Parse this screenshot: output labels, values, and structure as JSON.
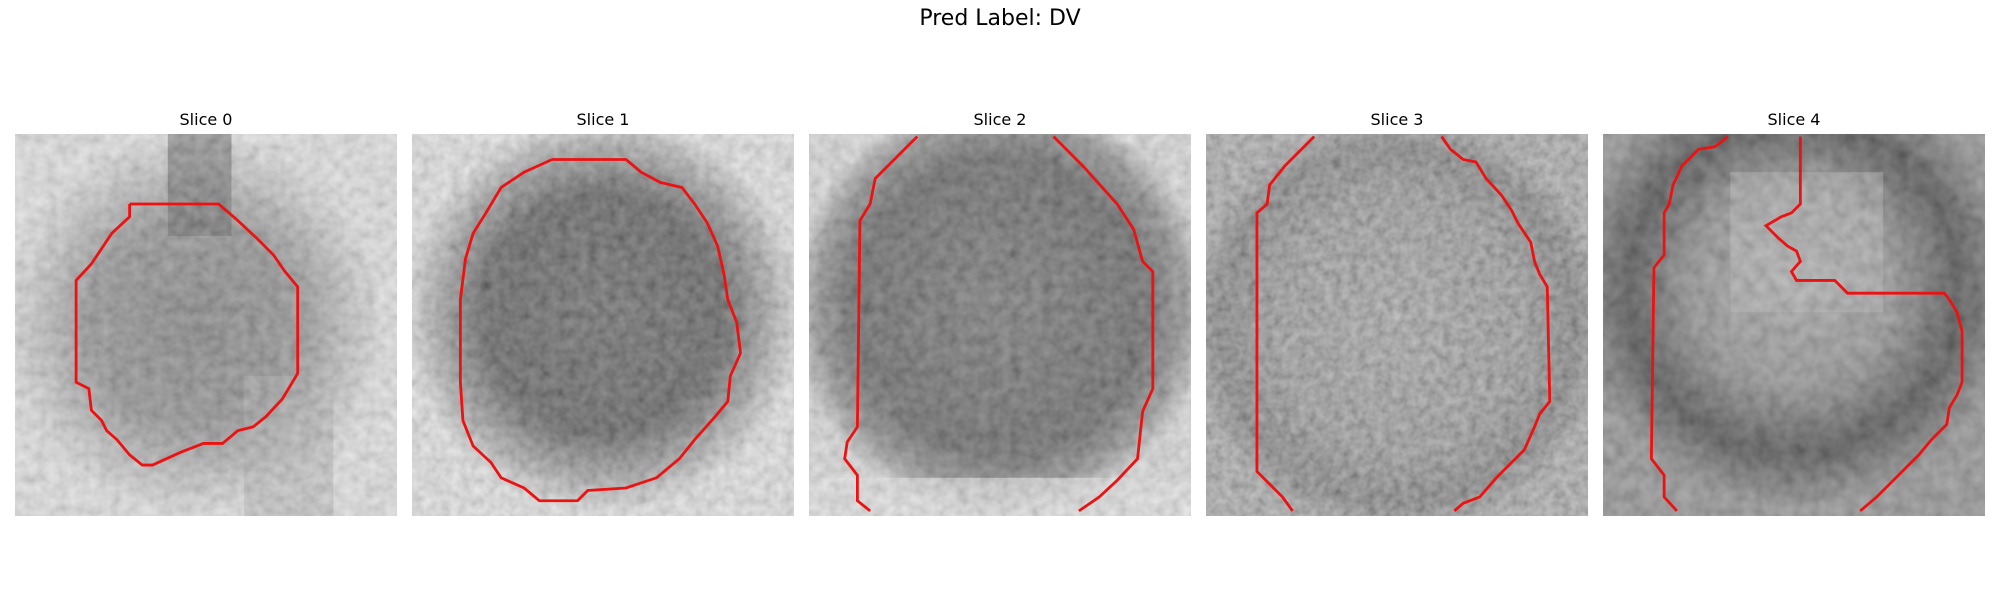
{
  "figure": {
    "title": "Pred Label: DV"
  },
  "slices": [
    {
      "title": "Slice 0",
      "index": 0
    },
    {
      "title": "Slice 1",
      "index": 1
    },
    {
      "title": "Slice 2",
      "index": 2
    },
    {
      "title": "Slice 3",
      "index": 3
    },
    {
      "title": "Slice 4",
      "index": 4
    }
  ],
  "colors": {
    "contour": "#ee1111",
    "background": "#ffffff"
  },
  "image": {
    "colormap": "grayscale",
    "grid_cells": 30
  }
}
